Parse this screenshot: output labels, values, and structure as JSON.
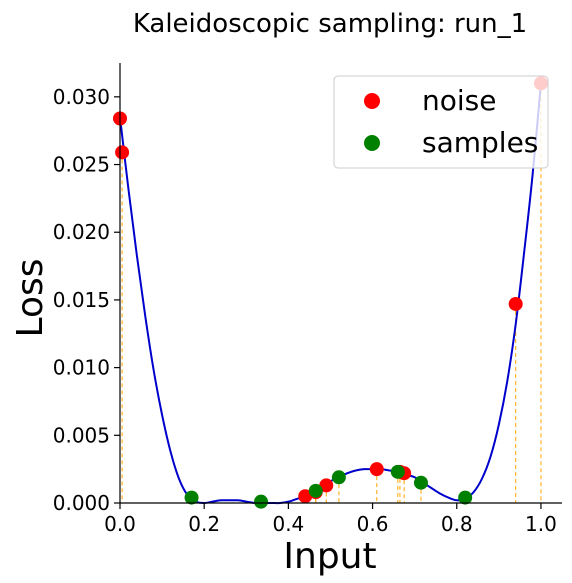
{
  "chart_data": {
    "type": "scatter",
    "title": "Kaleidoscopic sampling: run_1",
    "xlabel": "Input",
    "ylabel": "Loss",
    "xlim": [
      0.0,
      1.05
    ],
    "ylim": [
      0.0,
      0.0325
    ],
    "xticks": [
      0.0,
      0.2,
      0.4,
      0.6,
      0.8,
      1.0
    ],
    "xtick_labels": [
      "0.0",
      "0.2",
      "0.4",
      "0.6",
      "0.8",
      "1.0"
    ],
    "yticks": [
      0.0,
      0.005,
      0.01,
      0.015,
      0.02,
      0.025,
      0.03
    ],
    "ytick_labels": [
      "0.000",
      "0.005",
      "0.010",
      "0.015",
      "0.020",
      "0.025",
      "0.030"
    ],
    "grid": false,
    "legend_position": "top-right",
    "colors": {
      "noise": "#ff0000",
      "samples": "#008000",
      "curve": "#0000cc",
      "droplines": "#ffa500"
    },
    "curve": {
      "x": [
        0.0,
        0.02,
        0.04,
        0.06,
        0.08,
        0.1,
        0.12,
        0.14,
        0.16,
        0.18,
        0.2,
        0.22,
        0.24,
        0.26,
        0.28,
        0.3,
        0.32,
        0.34,
        0.36,
        0.38,
        0.4,
        0.42,
        0.44,
        0.46,
        0.48,
        0.5,
        0.52,
        0.54,
        0.56,
        0.58,
        0.6,
        0.62,
        0.64,
        0.66,
        0.68,
        0.7,
        0.72,
        0.74,
        0.76,
        0.78,
        0.8,
        0.82,
        0.84,
        0.86,
        0.88,
        0.9,
        0.92,
        0.94,
        0.96,
        0.98,
        1.0
      ],
      "y": [
        0.0285,
        0.0232,
        0.0183,
        0.0138,
        0.0098,
        0.0065,
        0.0038,
        0.0018,
        0.0006,
        0.0001,
        0.0,
        0.0001,
        0.0002,
        0.0002,
        0.0002,
        0.0001,
        0.0,
        0.0,
        0.0,
        0.0,
        0.0001,
        0.0003,
        0.0005,
        0.0008,
        0.0012,
        0.0016,
        0.0019,
        0.0022,
        0.0024,
        0.0025,
        0.0025,
        0.0025,
        0.0024,
        0.0023,
        0.0021,
        0.0019,
        0.0015,
        0.0011,
        0.0007,
        0.0004,
        0.0002,
        0.0003,
        0.0008,
        0.0018,
        0.0034,
        0.0058,
        0.009,
        0.0132,
        0.0185,
        0.0242,
        0.031
      ]
    },
    "series": [
      {
        "name": "noise",
        "x": [
          0.0,
          0.005,
          0.44,
          0.465,
          0.49,
          0.61,
          0.665,
          0.675,
          0.94,
          1.0
        ],
        "y": [
          0.0284,
          0.0259,
          0.0005,
          0.0008,
          0.0013,
          0.0025,
          0.0023,
          0.0022,
          0.0147,
          0.031
        ]
      },
      {
        "name": "samples",
        "x": [
          0.17,
          0.335,
          0.465,
          0.52,
          0.66,
          0.715,
          0.82
        ],
        "y": [
          0.0004,
          0.0001,
          0.0009,
          0.0019,
          0.0023,
          0.0015,
          0.0004
        ]
      }
    ]
  }
}
